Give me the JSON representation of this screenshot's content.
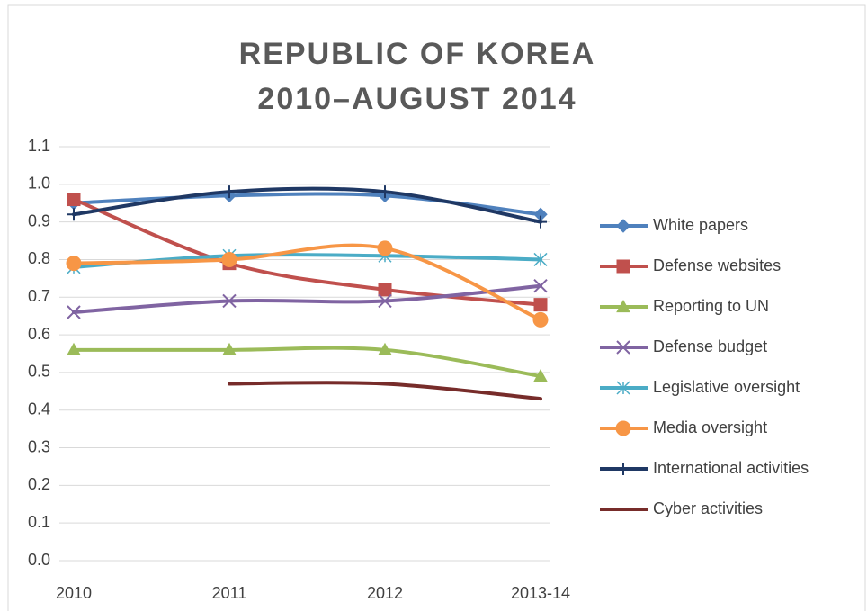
{
  "chart_data": {
    "type": "line",
    "title": [
      "REPUBLIC OF KOREA",
      "2010–AUGUST 2014"
    ],
    "categories": [
      "2010",
      "2011",
      "2012",
      "2013-14"
    ],
    "ylim": [
      0,
      1.1
    ],
    "yticks": [
      {
        "value": 0,
        "label": "0.0"
      },
      0.1,
      0.2,
      0.3,
      0.4,
      0.5,
      0.6,
      0.7,
      0.8,
      0.9,
      {
        "value": 1,
        "label": "1.0"
      },
      1.1
    ],
    "grid": true,
    "legend": "right",
    "smooth": true,
    "series": [
      {
        "name": "White papers",
        "color": "#4f81bd",
        "marker": "diamond",
        "values": [
          0.95,
          0.97,
          0.97,
          0.92
        ]
      },
      {
        "name": "Defense websites",
        "color": "#c0504d",
        "marker": "square",
        "values": [
          0.96,
          0.79,
          0.72,
          0.68
        ]
      },
      {
        "name": "Reporting to UN",
        "color": "#9bbb59",
        "marker": "triangle",
        "values": [
          0.56,
          0.56,
          0.56,
          0.49
        ]
      },
      {
        "name": "Defense budget",
        "color": "#8064a2",
        "marker": "x",
        "values": [
          0.66,
          0.69,
          0.69,
          0.73
        ]
      },
      {
        "name": "Legislative oversight",
        "color": "#4bacc6",
        "marker": "star",
        "values": [
          0.78,
          0.81,
          0.81,
          0.8
        ]
      },
      {
        "name": "Media oversight",
        "color": "#f79646",
        "marker": "circle",
        "values": [
          0.79,
          0.8,
          0.83,
          0.64
        ]
      },
      {
        "name": "International activities",
        "color": "#1f3864",
        "marker": "plus",
        "values": [
          0.92,
          0.98,
          0.98,
          0.9
        ]
      },
      {
        "name": "Cyber activities",
        "color": "#772c2a",
        "marker": "none",
        "values": [
          null,
          0.47,
          0.47,
          0.43
        ]
      }
    ]
  }
}
